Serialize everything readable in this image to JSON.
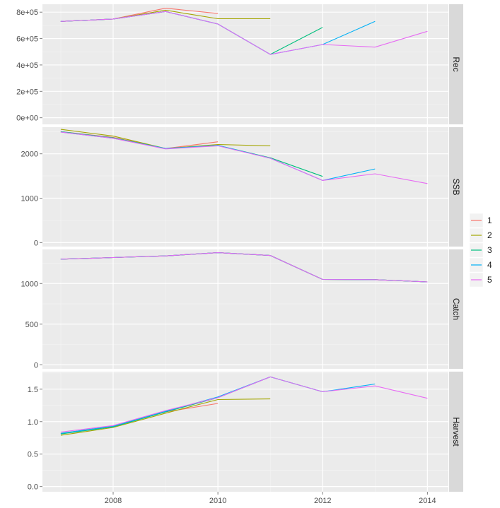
{
  "chart_data": {
    "type": "line",
    "x_ticks": [
      "2008",
      "2010",
      "2012",
      "2014"
    ],
    "xlim": [
      2006.65,
      2014.4
    ],
    "colors": {
      "1": "#F8766D",
      "2": "#A3A500",
      "3": "#00BF7D",
      "4": "#00B0F6",
      "5": "#E76BF3"
    },
    "legend": {
      "position": "right",
      "entries": [
        "1",
        "2",
        "3",
        "4",
        "5"
      ]
    },
    "grid": true,
    "panels": [
      {
        "strip": "Rec",
        "ylim": [
          -50000,
          860000
        ],
        "y_ticks": [
          {
            "v": 0,
            "label": "0e+00"
          },
          {
            "v": 200000,
            "label": "2e+05"
          },
          {
            "v": 400000,
            "label": "4e+05"
          },
          {
            "v": 600000,
            "label": "6e+05"
          },
          {
            "v": 800000,
            "label": "8e+05"
          }
        ],
        "series": [
          {
            "name": "1",
            "x": [
              2007,
              2008,
              2009,
              2010
            ],
            "y": [
              730000,
              748000,
              830000,
              790000
            ]
          },
          {
            "name": "2",
            "x": [
              2007,
              2008,
              2009,
              2010,
              2011
            ],
            "y": [
              730000,
              748000,
              815000,
              750000,
              750000
            ]
          },
          {
            "name": "3",
            "x": [
              2007,
              2008,
              2009,
              2010,
              2011,
              2012
            ],
            "y": [
              730000,
              748000,
              805000,
              710000,
              480000,
              685000
            ]
          },
          {
            "name": "4",
            "x": [
              2007,
              2008,
              2009,
              2010,
              2011,
              2012,
              2013
            ],
            "y": [
              730000,
              748000,
              805000,
              710000,
              480000,
              555000,
              730000
            ]
          },
          {
            "name": "5",
            "x": [
              2007,
              2008,
              2009,
              2010,
              2011,
              2012,
              2013,
              2014
            ],
            "y": [
              730000,
              748000,
              805000,
              710000,
              480000,
              555000,
              535000,
              655000
            ]
          }
        ]
      },
      {
        "strip": "SSB",
        "ylim": [
          -90,
          2600
        ],
        "y_ticks": [
          {
            "v": 0,
            "label": "0"
          },
          {
            "v": 1000,
            "label": "1000"
          },
          {
            "v": 2000,
            "label": "2000"
          }
        ],
        "series": [
          {
            "name": "1",
            "x": [
              2007,
              2008,
              2009,
              2010
            ],
            "y": [
              2500,
              2370,
              2120,
              2270
            ]
          },
          {
            "name": "2",
            "x": [
              2007,
              2008,
              2009,
              2010,
              2011
            ],
            "y": [
              2550,
              2400,
              2120,
              2210,
              2180
            ]
          },
          {
            "name": "3",
            "x": [
              2007,
              2008,
              2009,
              2010,
              2011,
              2012
            ],
            "y": [
              2500,
              2360,
              2120,
              2190,
              1910,
              1490
            ]
          },
          {
            "name": "4",
            "x": [
              2007,
              2008,
              2009,
              2010,
              2011,
              2012,
              2013
            ],
            "y": [
              2490,
              2350,
              2120,
              2190,
              1900,
              1400,
              1660
            ]
          },
          {
            "name": "5",
            "x": [
              2007,
              2008,
              2009,
              2010,
              2011,
              2012,
              2013,
              2014
            ],
            "y": [
              2490,
              2350,
              2110,
              2180,
              1900,
              1400,
              1550,
              1330
            ]
          }
        ]
      },
      {
        "strip": "Catch",
        "ylim": [
          -50,
          1420
        ],
        "y_ticks": [
          {
            "v": 0,
            "label": "0"
          },
          {
            "v": 500,
            "label": "500"
          },
          {
            "v": 1000,
            "label": "1000"
          }
        ],
        "series": [
          {
            "name": "1",
            "x": [
              2007,
              2008,
              2009,
              2010,
              2011,
              2012,
              2013,
              2014
            ],
            "y": [
              1300,
              1320,
              1340,
              1380,
              1345,
              1050,
              1048,
              1020
            ]
          },
          {
            "name": "2",
            "x": [
              2007,
              2008,
              2009,
              2010,
              2011,
              2012,
              2013,
              2014
            ],
            "y": [
              1300,
              1320,
              1340,
              1380,
              1345,
              1050,
              1048,
              1020
            ]
          },
          {
            "name": "3",
            "x": [
              2007,
              2008,
              2009,
              2010,
              2011,
              2012,
              2013,
              2014
            ],
            "y": [
              1300,
              1320,
              1340,
              1380,
              1345,
              1050,
              1048,
              1020
            ]
          },
          {
            "name": "4",
            "x": [
              2007,
              2008,
              2009,
              2010,
              2011,
              2012,
              2013,
              2014
            ],
            "y": [
              1300,
              1320,
              1340,
              1380,
              1345,
              1050,
              1048,
              1020
            ]
          },
          {
            "name": "5",
            "x": [
              2007,
              2008,
              2009,
              2010,
              2011,
              2012,
              2013,
              2014
            ],
            "y": [
              1300,
              1320,
              1340,
              1380,
              1345,
              1050,
              1048,
              1020
            ]
          }
        ]
      },
      {
        "strip": "Harvest",
        "ylim": [
          -0.08,
          1.77
        ],
        "y_ticks": [
          {
            "v": 0,
            "label": "0.0"
          },
          {
            "v": 0.5,
            "label": "0.5"
          },
          {
            "v": 1.0,
            "label": "1.0"
          },
          {
            "v": 1.5,
            "label": "1.5"
          }
        ],
        "series": [
          {
            "name": "1",
            "x": [
              2007,
              2008,
              2009,
              2010
            ],
            "y": [
              0.82,
              0.93,
              1.15,
              1.28
            ]
          },
          {
            "name": "2",
            "x": [
              2007,
              2008,
              2009,
              2010,
              2011
            ],
            "y": [
              0.79,
              0.91,
              1.13,
              1.34,
              1.35
            ]
          },
          {
            "name": "3",
            "x": [
              2007,
              2008,
              2009,
              2010,
              2011,
              2012
            ],
            "y": [
              0.81,
              0.92,
              1.15,
              1.37,
              1.69,
              1.46
            ]
          },
          {
            "name": "4",
            "x": [
              2007,
              2008,
              2009,
              2010,
              2011,
              2012,
              2013
            ],
            "y": [
              0.82,
              0.93,
              1.16,
              1.38,
              1.69,
              1.46,
              1.58
            ]
          },
          {
            "name": "5",
            "x": [
              2007,
              2008,
              2009,
              2010,
              2011,
              2012,
              2013,
              2014
            ],
            "y": [
              0.84,
              0.94,
              1.17,
              1.37,
              1.69,
              1.46,
              1.55,
              1.36
            ]
          }
        ]
      }
    ]
  }
}
